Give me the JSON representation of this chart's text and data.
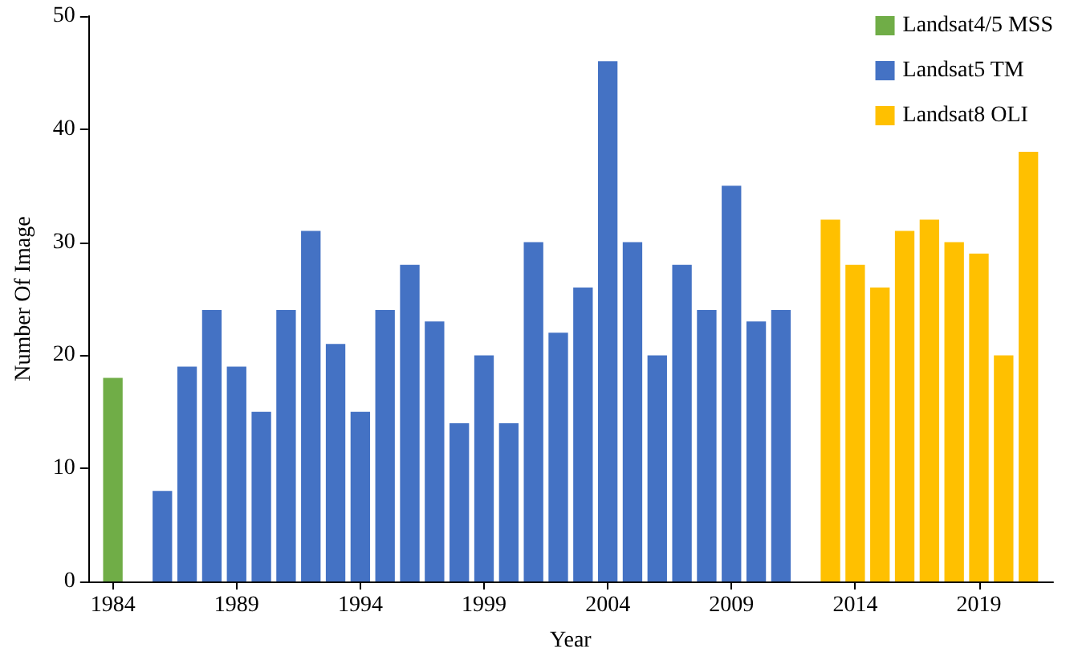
{
  "chart_data": {
    "type": "bar",
    "xlabel": "Year",
    "ylabel": "Number Of Image",
    "xlim": [
      1983,
      2022
    ],
    "xticks": [
      1984,
      1989,
      1994,
      1999,
      2004,
      2009,
      2014,
      2019
    ],
    "ylim": [
      0,
      50
    ],
    "yticks": [
      0,
      10,
      20,
      30,
      40,
      50
    ],
    "grid": false,
    "legend": "top right",
    "series": [
      {
        "name": "Landsat4/5 MSS",
        "color": "#70ad47",
        "x": [
          1984
        ],
        "values": [
          18
        ]
      },
      {
        "name": "Landsat5 TM",
        "color": "#4472c4",
        "x": [
          1986,
          1987,
          1988,
          1989,
          1990,
          1991,
          1992,
          1993,
          1994,
          1995,
          1996,
          1997,
          1998,
          1999,
          2000,
          2001,
          2002,
          2003,
          2004,
          2005,
          2006,
          2007,
          2008,
          2009,
          2010,
          2011
        ],
        "values": [
          8,
          19,
          24,
          19,
          15,
          24,
          31,
          21,
          15,
          24,
          28,
          23,
          14,
          20,
          14,
          30,
          22,
          26,
          46,
          30,
          20,
          28,
          24,
          35,
          23,
          24
        ]
      },
      {
        "name": "Landsat8 OLI",
        "color": "#ffc000",
        "x": [
          2013,
          2014,
          2015,
          2016,
          2017,
          2018,
          2019,
          2020,
          2021
        ],
        "values": [
          32,
          28,
          26,
          31,
          32,
          30,
          29,
          20,
          38
        ]
      }
    ]
  }
}
